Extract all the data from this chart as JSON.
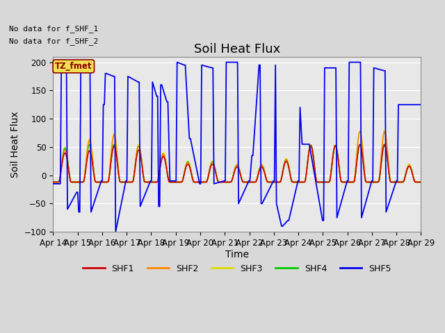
{
  "title": "Soil Heat Flux",
  "ylabel": "Soil Heat Flux",
  "xlabel": "Time",
  "ylim": [
    -100,
    210
  ],
  "yticks": [
    -100,
    -50,
    0,
    50,
    100,
    150,
    200
  ],
  "xtick_labels": [
    "Apr 14",
    "Apr 15",
    "Apr 16",
    "Apr 17",
    "Apr 18",
    "Apr 19",
    "Apr 20",
    "Apr 21",
    "Apr 22",
    "Apr 23",
    "Apr 24",
    "Apr 25",
    "Apr 26",
    "Apr 27",
    "Apr 28",
    "Apr 29"
  ],
  "colors": {
    "SHF1": "#cc0000",
    "SHF2": "#ff8800",
    "SHF3": "#dddd00",
    "SHF4": "#00cc00",
    "SHF5": "#0000ee"
  },
  "no_data_text": [
    "No data for f_SHF_1",
    "No data for f_SHF_2"
  ],
  "tz_label": "TZ_fmet",
  "bg_color": "#e8e8e8",
  "grid_color": "#ffffff",
  "title_fontsize": 13,
  "axis_fontsize": 10,
  "tick_fontsize": 8.5
}
